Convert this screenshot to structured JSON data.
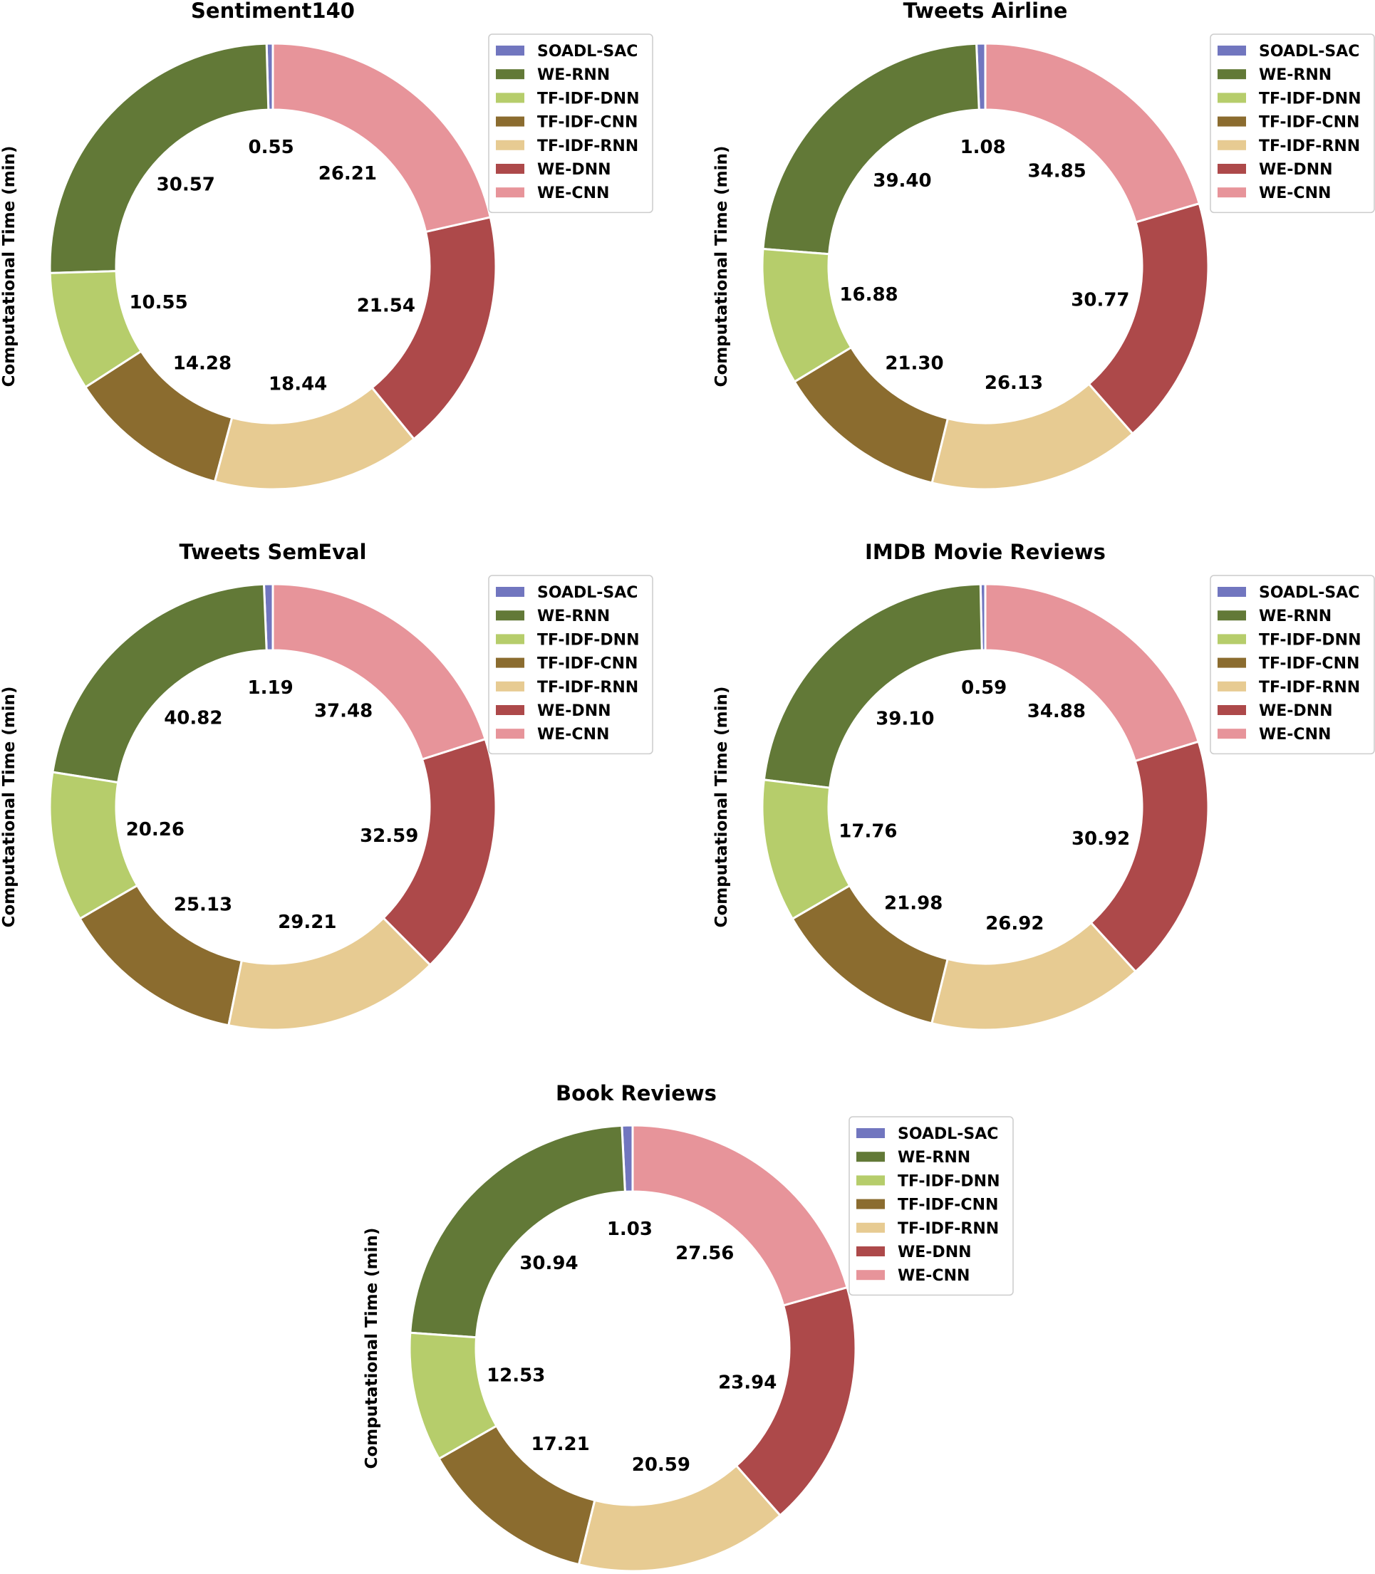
{
  "chart_data": [
    {
      "type": "pie",
      "title": "Sentiment140",
      "ylabel": "Computational Time (min)",
      "categories": [
        "SOADL-SAC",
        "WE-RNN",
        "TF-IDF-DNN",
        "TF-IDF-CNN",
        "TF-IDF-RNN",
        "WE-DNN",
        "WE-CNN"
      ],
      "values": [
        0.55,
        30.57,
        10.55,
        14.28,
        18.44,
        21.54,
        26.21
      ],
      "labels": [
        "0.55",
        "30.57",
        "10.55",
        "14.28",
        "18.44",
        "21.54",
        "26.21"
      ],
      "legend": "top-right"
    },
    {
      "type": "pie",
      "title": "Tweets Airline",
      "ylabel": "Computational Time (min)",
      "categories": [
        "SOADL-SAC",
        "WE-RNN",
        "TF-IDF-DNN",
        "TF-IDF-CNN",
        "TF-IDF-RNN",
        "WE-DNN",
        "WE-CNN"
      ],
      "values": [
        1.08,
        39.4,
        16.88,
        21.3,
        26.13,
        30.77,
        34.85
      ],
      "labels": [
        "1.08",
        "39.40",
        "16.88",
        "21.30",
        "26.13",
        "30.77",
        "34.85"
      ],
      "legend": "top-right"
    },
    {
      "type": "pie",
      "title": "Tweets SemEval",
      "ylabel": "Computational Time (min)",
      "categories": [
        "SOADL-SAC",
        "WE-RNN",
        "TF-IDF-DNN",
        "TF-IDF-CNN",
        "TF-IDF-RNN",
        "WE-DNN",
        "WE-CNN"
      ],
      "values": [
        1.19,
        40.82,
        20.26,
        25.13,
        29.21,
        32.59,
        37.48
      ],
      "labels": [
        "1.19",
        "40.82",
        "20.26",
        "25.13",
        "29.21",
        "32.59",
        "37.48"
      ],
      "legend": "top-right"
    },
    {
      "type": "pie",
      "title": "IMDB Movie Reviews",
      "ylabel": "Computational Time (min)",
      "categories": [
        "SOADL-SAC",
        "WE-RNN",
        "TF-IDF-DNN",
        "TF-IDF-CNN",
        "TF-IDF-RNN",
        "WE-DNN",
        "WE-CNN"
      ],
      "values": [
        0.59,
        39.1,
        17.76,
        21.98,
        26.92,
        30.92,
        34.88
      ],
      "labels": [
        "0.59",
        "39.10",
        "17.76",
        "21.98",
        "26.92",
        "30.92",
        "34.88"
      ],
      "legend": "top-right"
    },
    {
      "type": "pie",
      "title": "Book Reviews",
      "ylabel": "Computational Time (min)",
      "categories": [
        "SOADL-SAC",
        "WE-RNN",
        "TF-IDF-DNN",
        "TF-IDF-CNN",
        "TF-IDF-RNN",
        "WE-DNN",
        "WE-CNN"
      ],
      "values": [
        1.03,
        30.94,
        12.53,
        17.21,
        20.59,
        23.94,
        27.56
      ],
      "labels": [
        "1.03",
        "30.94",
        "12.53",
        "17.21",
        "20.59",
        "23.94",
        "27.56"
      ],
      "legend": "top-right"
    }
  ],
  "colors": [
    "#7176bf",
    "#627937",
    "#b6cd6b",
    "#8b6c2f",
    "#e7cb92",
    "#ad494a",
    "#e7949a"
  ]
}
